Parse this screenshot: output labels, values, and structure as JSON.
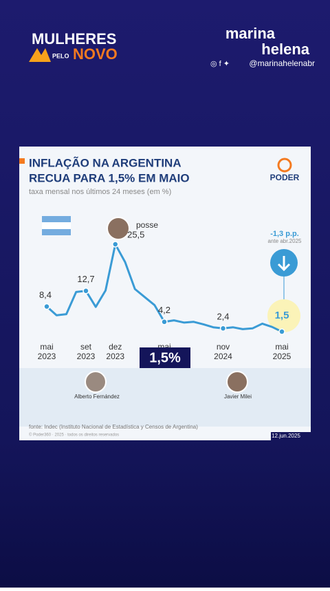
{
  "brand": {
    "line1": "MULHERES",
    "pelo": "PELO",
    "novo": "NOVO"
  },
  "author": {
    "line1": "marina",
    "line2": "helena",
    "handle": "@marinahelenabr"
  },
  "footer": {
    "source": "fonte: Indec (Instituto Nacional de Estadística y Censos de Argentina)",
    "copyright": "© Poder360 · 2025 · todos os direitos reservados",
    "date": "12.jun.2025",
    "logo": "PODER"
  },
  "annotations": {
    "posse": "posse",
    "change": "-1,3 p.p.",
    "change_sub": "ante abr.2025",
    "highlight": "1,5%",
    "person1": "Alberto Fernández",
    "person2": "Javier Milei"
  },
  "chart_data": {
    "type": "line",
    "title": [
      "INFLAÇÃO NA ARGENTINA",
      "RECUA PARA 1,5% EM MAIO"
    ],
    "subtitle": "taxa mensal nos últimos 24 meses (em %)",
    "categories": [
      [
        "mai",
        "2023"
      ],
      null,
      null,
      null,
      [
        "set",
        "2023"
      ],
      null,
      null,
      [
        "dez",
        "2023"
      ],
      null,
      null,
      null,
      null,
      [
        "mai"
      ],
      null,
      null,
      null,
      null,
      null,
      [
        "nov",
        "2024"
      ],
      null,
      null,
      null,
      null,
      null,
      [
        "mai",
        "2025"
      ]
    ],
    "series": [
      {
        "name": "inflação",
        "color": "#3a9bd5",
        "values": [
          8.4,
          6.0,
          6.3,
          12.4,
          12.7,
          8.3,
          12.8,
          25.5,
          20.6,
          13.2,
          11.0,
          8.8,
          4.2,
          4.6,
          4.0,
          4.2,
          3.5,
          2.7,
          2.4,
          2.7,
          2.2,
          2.4,
          3.7,
          2.8,
          1.5
        ],
        "value_labels": [
          "8,4",
          null,
          null,
          null,
          "12,7",
          null,
          null,
          "25,5",
          null,
          null,
          null,
          null,
          "4,2",
          null,
          null,
          null,
          null,
          null,
          "2,4",
          null,
          null,
          null,
          null,
          null,
          "1,5"
        ]
      }
    ],
    "ylim": [
      0,
      26
    ]
  }
}
